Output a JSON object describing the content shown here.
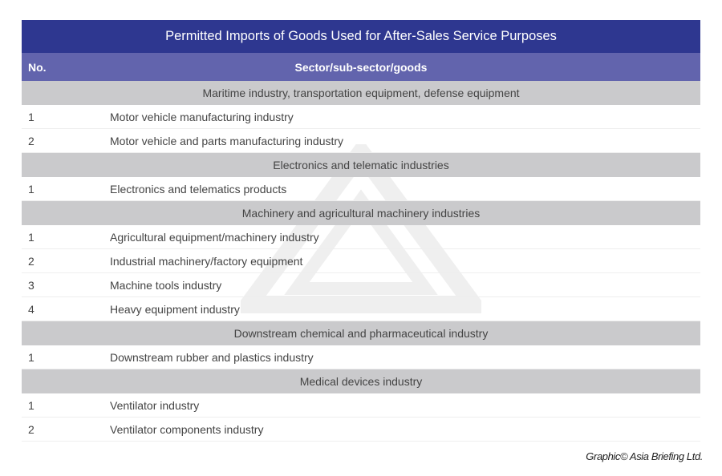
{
  "title": "Permitted Imports of Goods Used for After-Sales Service Purposes",
  "header": {
    "no": "No.",
    "sector": "Sector/sub-sector/goods"
  },
  "sections": [
    {
      "label": "Maritime industry, transportation equipment, defense equipment",
      "rows": [
        {
          "no": "1",
          "item": "Motor vehicle manufacturing industry"
        },
        {
          "no": "2",
          "item": "Motor vehicle and parts manufacturing industry"
        }
      ]
    },
    {
      "label": "Electronics and telematic industries",
      "rows": [
        {
          "no": "1",
          "item": "Electronics and telematics products"
        }
      ]
    },
    {
      "label": "Machinery and agricultural machinery industries",
      "rows": [
        {
          "no": "1",
          "item": "Agricultural equipment/machinery industry"
        },
        {
          "no": "2",
          "item": "Industrial machinery/factory equipment"
        },
        {
          "no": "3",
          "item": "Machine tools industry"
        },
        {
          "no": "4",
          "item": "Heavy equipment industry"
        }
      ]
    },
    {
      "label": "Downstream chemical and pharmaceutical industry",
      "rows": [
        {
          "no": "1",
          "item": "Downstream rubber and plastics industry"
        }
      ]
    },
    {
      "label": "Medical devices industry",
      "rows": [
        {
          "no": "1",
          "item": "Ventilator industry"
        },
        {
          "no": "2",
          "item": "Ventilator components industry"
        }
      ]
    }
  ],
  "credit": "Graphic© Asia Briefing Ltd.",
  "colors": {
    "title_bg": "#2e3790",
    "header_bg": "#6264ad",
    "section_bg": "#cacacc"
  }
}
